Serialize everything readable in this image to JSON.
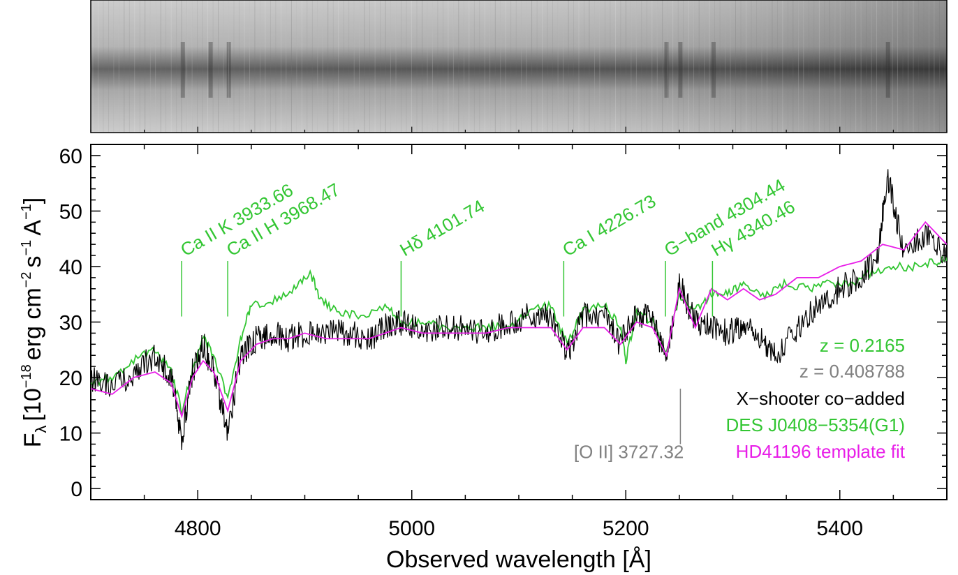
{
  "chart_data": {
    "type": "line",
    "xlabel": "Observed wavelength [Å]",
    "ylabel": {
      "prefix": "F",
      "sub": "λ",
      "open": "[10",
      "exp1": "−18",
      "unit1": "erg cm",
      "exp2": "−2",
      "unit2": "s",
      "exp3": "−1",
      "unit3": "A",
      "exp4": "−1",
      "close": "]"
    },
    "xlim": [
      4700,
      5500
    ],
    "ylim": [
      -2,
      62
    ],
    "xticks": [
      4800,
      5000,
      5200,
      5400
    ],
    "yticks": [
      0,
      10,
      20,
      30,
      40,
      50,
      60
    ],
    "grid": false,
    "colors": {
      "observed": "#000000",
      "galaxy": "#33c633",
      "template": "#e81ee8",
      "oii": "#808080"
    },
    "legend": {
      "position": "lower-right",
      "entries": [
        {
          "text": "z = 0.2165",
          "color": "#33c633"
        },
        {
          "text": "z = 0.408788",
          "color": "#808080"
        },
        {
          "text": "X−shooter co−added",
          "color": "#000000"
        },
        {
          "text": "DES J0408−5354(G1)",
          "color": "#33c633"
        },
        {
          "text": "HD41196 template fit",
          "color": "#e81ee8"
        }
      ]
    },
    "line_markers": [
      {
        "label": "Ca II K 3933.66",
        "x": 4785,
        "y0": 31,
        "y1": 41,
        "color": "#33c633"
      },
      {
        "label": "Ca II H 3968.47",
        "x": 4828,
        "y0": 31,
        "y1": 41,
        "color": "#33c633"
      },
      {
        "label": "Hδ 4101.74",
        "x": 4990,
        "y0": 31,
        "y1": 41,
        "color": "#33c633"
      },
      {
        "label": "Ca I 4226.73",
        "x": 5142,
        "y0": 31,
        "y1": 41,
        "color": "#33c633"
      },
      {
        "label": "G−band 4304.44",
        "x": 5237,
        "y0": 31,
        "y1": 41,
        "color": "#33c633"
      },
      {
        "label": "Hγ 4340.46",
        "x": 5281,
        "y0": 31,
        "y1": 41,
        "color": "#33c633"
      },
      {
        "label": "[O II] 3727.32",
        "x": 5251,
        "y0": 8,
        "y1": 18,
        "color": "#808080"
      }
    ],
    "series": [
      {
        "name": "X−shooter co−added",
        "color": "#000000",
        "x": [
          4700,
          4720,
          4740,
          4760,
          4775,
          4785,
          4795,
          4805,
          4815,
          4828,
          4840,
          4855,
          4870,
          4885,
          4900,
          4920,
          4940,
          4960,
          4975,
          4990,
          5010,
          5030,
          5050,
          5070,
          5090,
          5110,
          5130,
          5145,
          5160,
          5180,
          5195,
          5210,
          5225,
          5238,
          5250,
          5265,
          5280,
          5295,
          5310,
          5325,
          5340,
          5360,
          5380,
          5400,
          5420,
          5435,
          5445,
          5460,
          5480,
          5500
        ],
        "y": [
          20,
          18,
          21,
          24,
          20,
          9,
          21,
          26,
          21,
          10,
          24,
          27,
          28,
          27,
          28,
          28,
          28,
          27,
          29,
          30,
          28,
          29,
          29,
          28,
          30,
          31,
          31,
          24,
          31,
          31,
          26,
          32,
          30,
          23,
          37,
          30,
          29,
          28,
          29,
          27,
          24,
          29,
          33,
          36,
          38,
          42,
          56,
          42,
          46,
          42
        ]
      },
      {
        "name": "DES J0408−5354(G1)",
        "color": "#33c633",
        "x": [
          4700,
          4720,
          4740,
          4760,
          4775,
          4785,
          4795,
          4805,
          4815,
          4828,
          4840,
          4850,
          4870,
          4890,
          4905,
          4915,
          4930,
          4950,
          4975,
          4990,
          5010,
          5030,
          5050,
          5070,
          5090,
          5110,
          5130,
          5145,
          5160,
          5180,
          5195,
          5200,
          5210,
          5225,
          5238,
          5250,
          5265,
          5280,
          5295,
          5310,
          5330,
          5350,
          5370,
          5390,
          5410,
          5430,
          5450,
          5470,
          5490,
          5500
        ],
        "y": [
          19,
          20,
          23,
          25,
          21,
          14,
          21,
          27,
          24,
          16,
          27,
          33,
          34,
          36,
          39,
          34,
          32,
          31,
          33,
          30,
          30,
          29,
          29,
          29,
          29,
          32,
          33,
          26,
          32,
          33,
          29,
          23,
          32,
          30,
          24,
          35,
          32,
          35,
          35,
          37,
          35,
          37,
          36,
          37,
          37,
          39,
          40,
          40,
          41,
          41
        ]
      },
      {
        "name": "HD41196 template fit",
        "color": "#e81ee8",
        "x": [
          4700,
          4720,
          4740,
          4760,
          4775,
          4785,
          4795,
          4805,
          4815,
          4828,
          4840,
          4855,
          4870,
          4885,
          4900,
          4920,
          4940,
          4960,
          4975,
          4990,
          5010,
          5030,
          5050,
          5070,
          5090,
          5110,
          5130,
          5145,
          5160,
          5180,
          5195,
          5210,
          5225,
          5238,
          5250,
          5265,
          5280,
          5295,
          5310,
          5325,
          5340,
          5360,
          5380,
          5400,
          5420,
          5440,
          5460,
          5480,
          5500
        ],
        "y": [
          18,
          17,
          20,
          21,
          19,
          13,
          20,
          23,
          21,
          14,
          23,
          26,
          27,
          27,
          28,
          27,
          27,
          27,
          28,
          29,
          28,
          28,
          28,
          28,
          29,
          29,
          29,
          25,
          29,
          29,
          26,
          30,
          29,
          24,
          36,
          29,
          36,
          34,
          36,
          34,
          35,
          38,
          38,
          40,
          41,
          44,
          43,
          48,
          44
        ]
      }
    ]
  }
}
